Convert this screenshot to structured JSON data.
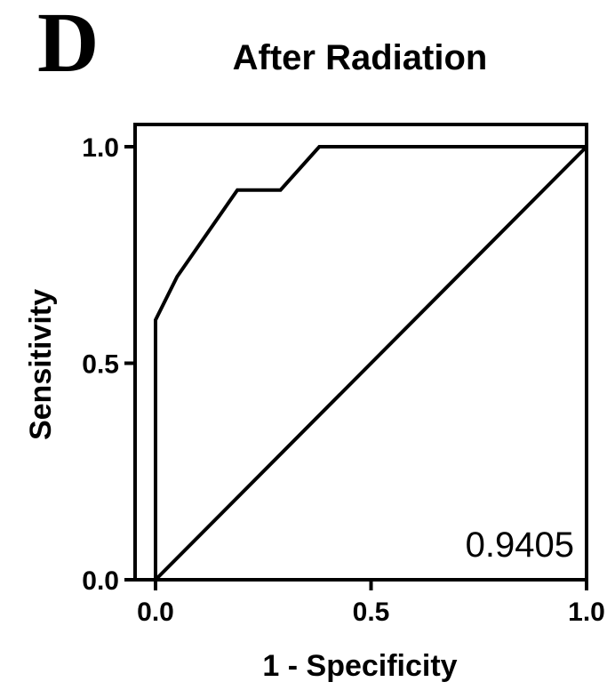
{
  "panel_label": "D",
  "chart_data": {
    "type": "line",
    "title": "After Radiation",
    "xlabel": "1 - Specificity",
    "ylabel": "Sensitivity",
    "xlim": [
      0,
      1
    ],
    "ylim": [
      0,
      1
    ],
    "x_ticks": [
      0,
      0.5,
      1
    ],
    "y_ticks": [
      0,
      0.5,
      1
    ],
    "x_tick_labels": [
      "0.0",
      "0.5",
      "1.0"
    ],
    "y_tick_labels": [
      "0.0",
      "0.5",
      "1.0"
    ],
    "grid": false,
    "legend": "none",
    "series": [
      {
        "x": [
          0.0,
          0.0,
          0.05,
          0.19,
          0.29,
          0.38,
          1.0
        ],
        "y": [
          0.0,
          0.6,
          0.7,
          0.9,
          0.9,
          1.0,
          1.0
        ]
      },
      {
        "x": [
          0.0,
          1.0
        ],
        "y": [
          0.0,
          1.0
        ]
      }
    ],
    "annotations": [
      {
        "text": "0.9405",
        "position": "bottom-right"
      }
    ]
  }
}
